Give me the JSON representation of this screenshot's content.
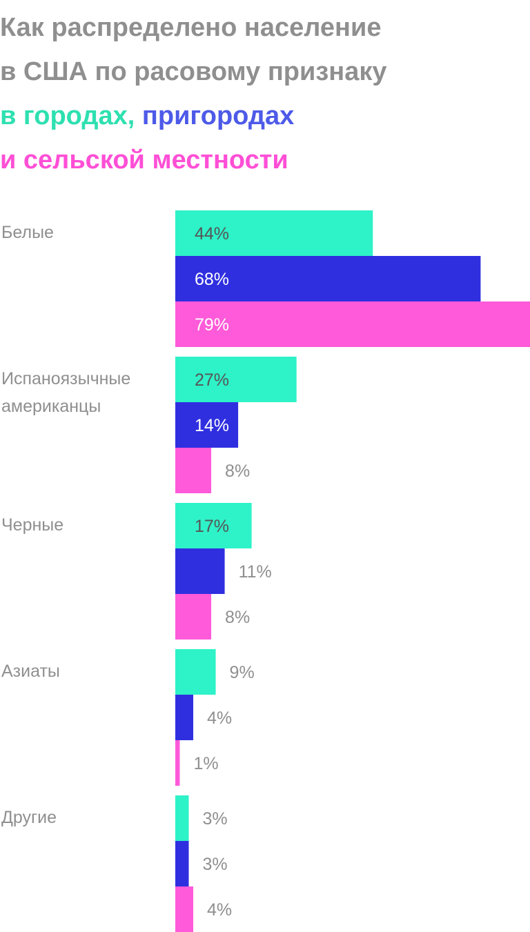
{
  "title": {
    "line1": "Как распределено население",
    "line2": "в США по расовому признаку",
    "urban": "в городах",
    "comma": ", ",
    "suburban": "пригородах",
    "rural": "и сельской местности"
  },
  "colors": {
    "urban": "#2ef2c8",
    "suburban": "#2f2fe0",
    "rural": "#ff5ad9",
    "title_gray": "#8f8f8f",
    "label_gray": "#8f8f8f",
    "urban_title": "#2ee0b0",
    "suburban_title": "#4d5ae8",
    "rural_title": "#ff4fd6"
  },
  "chart_data": {
    "type": "bar",
    "orientation": "horizontal",
    "categories": [
      [
        "Белые"
      ],
      [
        "Испаноязычные",
        "американцы"
      ],
      [
        "Черные"
      ],
      [
        "Азиаты"
      ],
      [
        "Другие"
      ]
    ],
    "series": [
      {
        "key": "urban",
        "values": [
          44,
          27,
          17,
          9,
          3
        ]
      },
      {
        "key": "suburban",
        "values": [
          68,
          14,
          11,
          4,
          3
        ]
      },
      {
        "key": "rural",
        "values": [
          79,
          8,
          8,
          1,
          4
        ]
      }
    ],
    "value_labels": [
      [
        "44%",
        "68%",
        "79%"
      ],
      [
        "27%",
        "14%",
        "8%"
      ],
      [
        "17%",
        "11%",
        "8%"
      ],
      [
        "9%",
        "4%",
        "1%"
      ],
      [
        "3%",
        "3%",
        "4%"
      ]
    ],
    "xlim": [
      0,
      79
    ],
    "grid": false,
    "legend": "title"
  }
}
